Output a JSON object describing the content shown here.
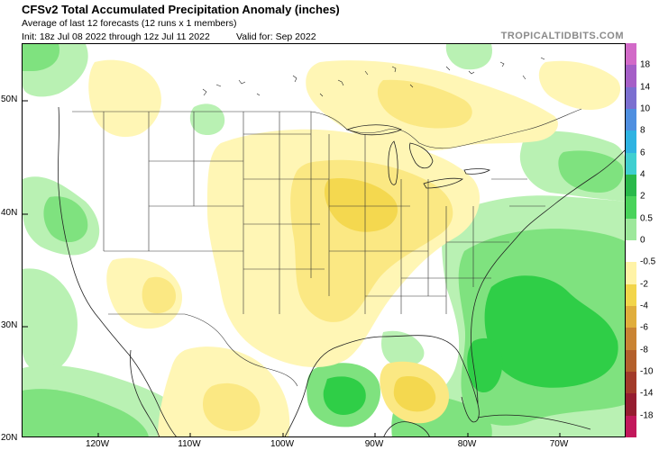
{
  "header": {
    "title": "CFSv2 Total Accumulated Precipitation Anomaly (inches)",
    "subtitle": "Average of last 12 forecasts (12 runs x 1 members)",
    "init": "Init: 18z Jul 08 2022 through 12z Jul 11 2022",
    "valid": "Valid for: Sep 2022",
    "brand": "TROPICALTIDBITS.COM"
  },
  "axes": {
    "lat_labels": [
      "50N",
      "40N",
      "30N",
      "20N"
    ],
    "lon_labels": [
      "120W",
      "110W",
      "100W",
      "90W",
      "80W",
      "70W"
    ]
  },
  "colorbar": {
    "labels": [
      "18",
      "14",
      "10",
      "8",
      "6",
      "4",
      "2",
      "0.5",
      "0",
      "-0.5",
      "-2",
      "-4",
      "-6",
      "-8",
      "-10",
      "-14",
      "-18"
    ],
    "colors": [
      "#d26ac8",
      "#a55fc7",
      "#7b6fd0",
      "#4f8fe0",
      "#2fb3e2",
      "#3fcfd0",
      "#29b94a",
      "#49d35a",
      "#9de89b",
      "#ffffff",
      "#fff3a6",
      "#f2d54a",
      "#e0ae3c",
      "#c98434",
      "#b3602c",
      "#a23b2a",
      "#951d30",
      "#c2185b"
    ]
  },
  "map": {
    "colors": {
      "wet_light": "#b9f1b3",
      "wet_mid": "#7fe27f",
      "wet_strong": "#2fce47",
      "dry_light": "#fff6b5",
      "dry_mid": "#fbe883",
      "dry_strong": "#f4d84f",
      "land_line": "#222222",
      "state_line": "#333333"
    }
  }
}
